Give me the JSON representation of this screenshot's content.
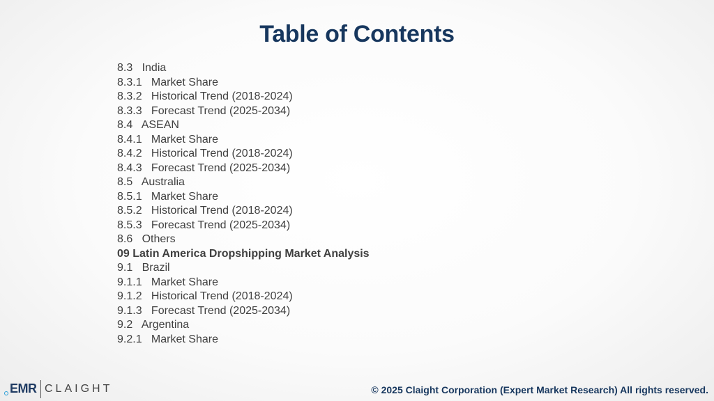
{
  "title": "Table of Contents",
  "toc": [
    {
      "text": "8.3   India",
      "bold": false
    },
    {
      "text": "8.3.1   Market Share",
      "bold": false
    },
    {
      "text": "8.3.2   Historical Trend (2018-2024)",
      "bold": false
    },
    {
      "text": "8.3.3   Forecast Trend (2025-2034)",
      "bold": false
    },
    {
      "text": "8.4   ASEAN",
      "bold": false
    },
    {
      "text": "8.4.1   Market Share",
      "bold": false
    },
    {
      "text": "8.4.2   Historical Trend (2018-2024)",
      "bold": false
    },
    {
      "text": "8.4.3   Forecast Trend (2025-2034)",
      "bold": false
    },
    {
      "text": "8.5   Australia",
      "bold": false
    },
    {
      "text": "8.5.1   Market Share",
      "bold": false
    },
    {
      "text": "8.5.2   Historical Trend (2018-2024)",
      "bold": false
    },
    {
      "text": "8.5.3   Forecast Trend (2025-2034)",
      "bold": false
    },
    {
      "text": "8.6   Others",
      "bold": false
    },
    {
      "text": "09 Latin America Dropshipping Market Analysis",
      "bold": true
    },
    {
      "text": "9.1   Brazil",
      "bold": false
    },
    {
      "text": "9.1.1   Market Share",
      "bold": false
    },
    {
      "text": "9.1.2   Historical Trend (2018-2024)",
      "bold": false
    },
    {
      "text": "9.1.3   Forecast Trend (2025-2034)",
      "bold": false
    },
    {
      "text": "9.2   Argentina",
      "bold": false
    },
    {
      "text": "9.2.1   Market Share",
      "bold": false
    }
  ],
  "logo": {
    "primary": "EMR",
    "secondary": "CLAIGHT"
  },
  "footer": "© 2025 Claight Corporation (Expert Market Research) All rights reserved.",
  "colors": {
    "title": "#17375e",
    "body_text": "#404040",
    "logo_dot": "#2a9fd8"
  }
}
